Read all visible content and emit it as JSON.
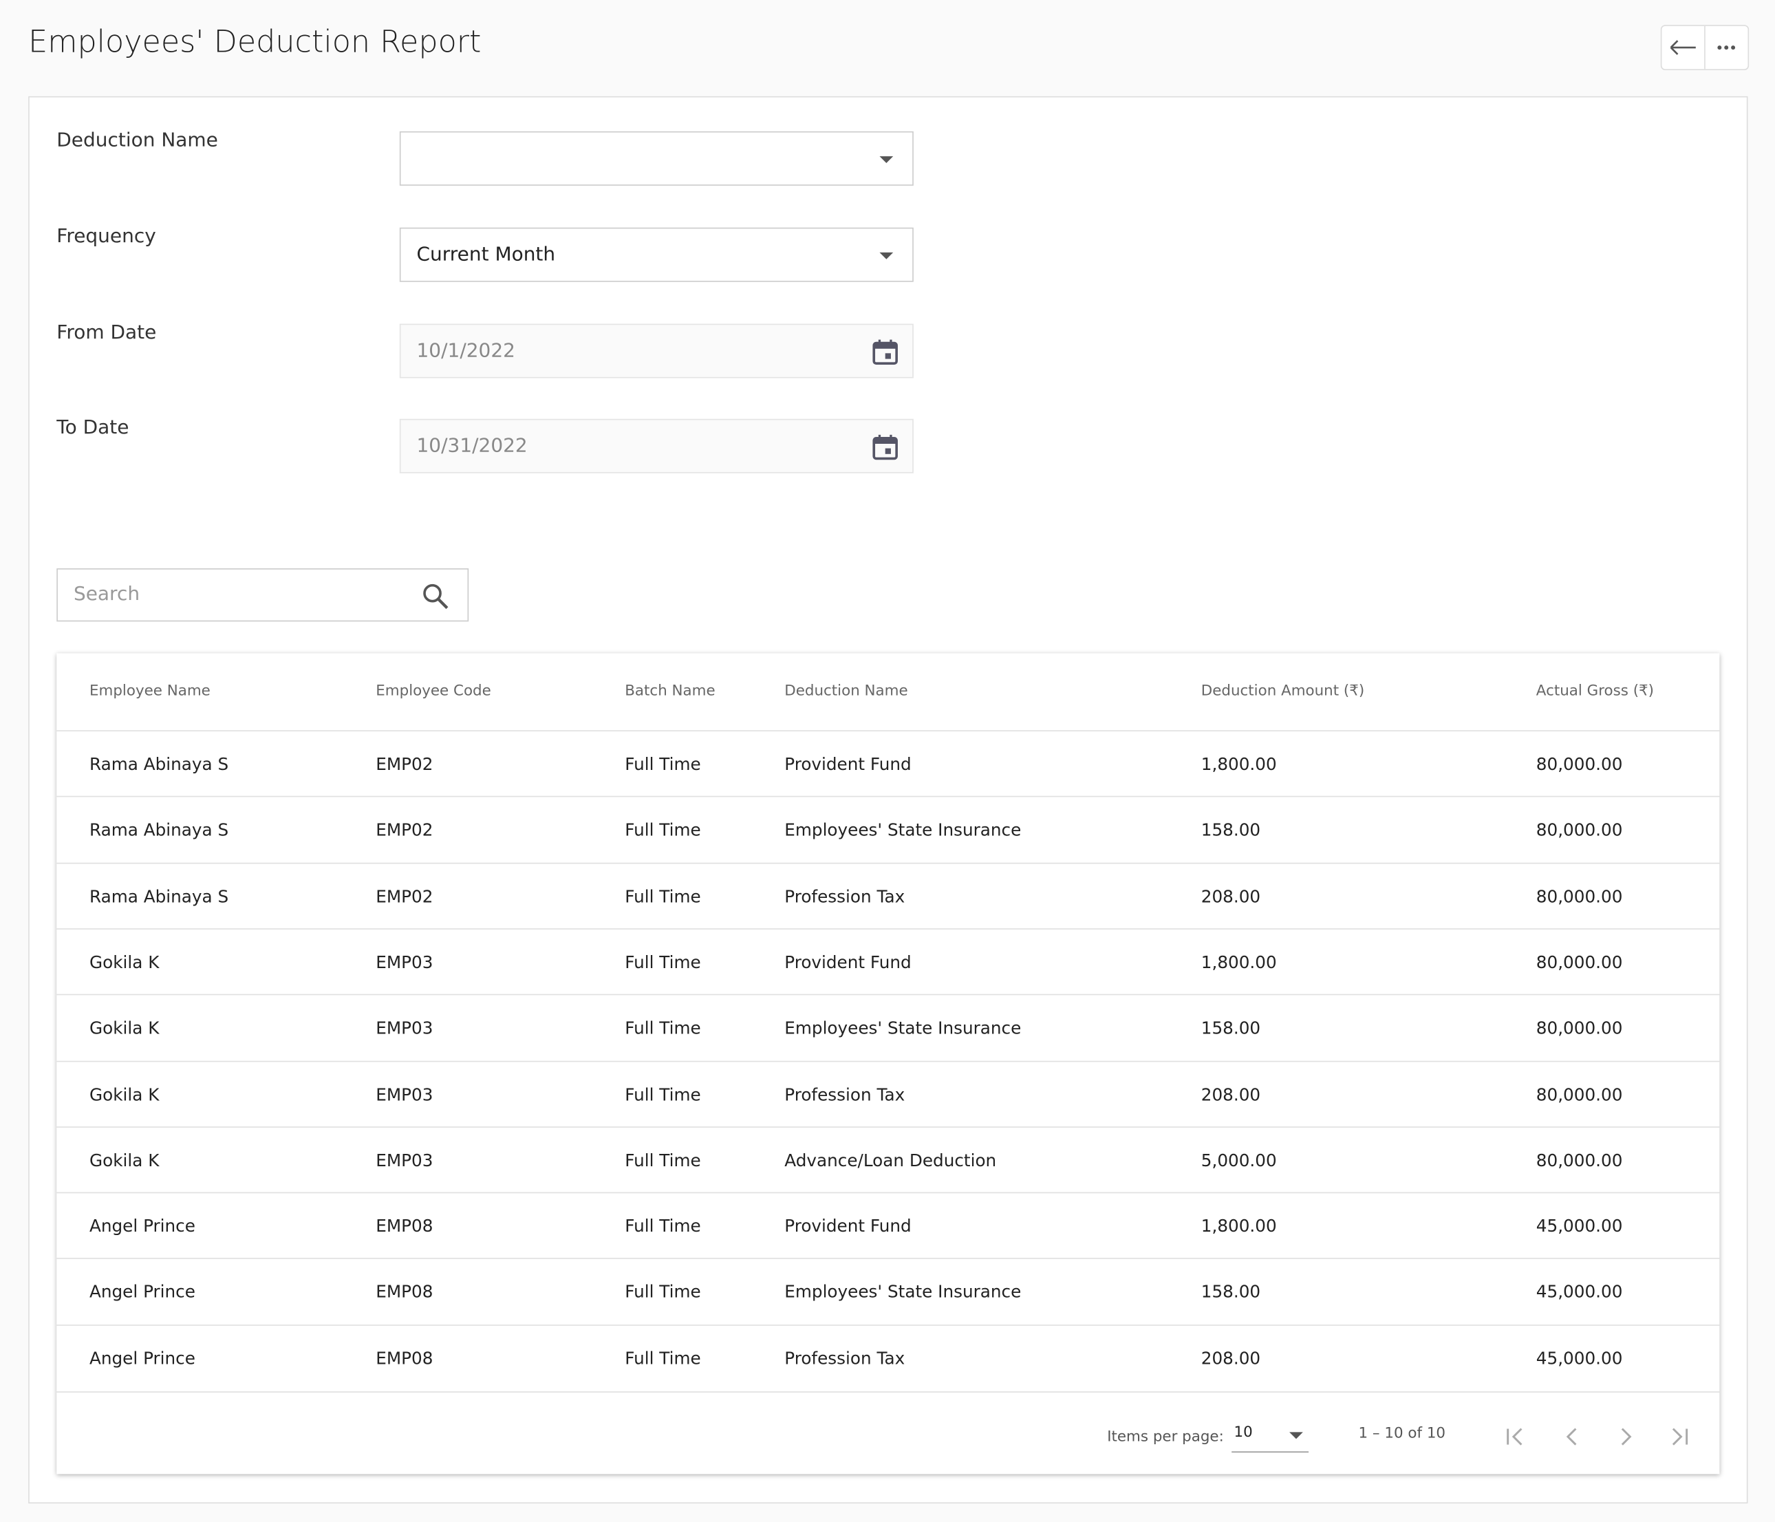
{
  "header": {
    "title": "Employees' Deduction Report"
  },
  "form": {
    "fields": [
      {
        "label": "Deduction Name",
        "value": null,
        "kind": "select"
      },
      {
        "label": "Frequency",
        "value": "Current Month",
        "kind": "select"
      },
      {
        "label": "From Date",
        "value": "10/1/2022",
        "kind": "date"
      },
      {
        "label": "To Date",
        "value": "10/31/2022",
        "kind": "date"
      }
    ]
  },
  "search": {
    "placeholder": "Search"
  },
  "table": {
    "columns": [
      "Employee Name",
      "Employee Code",
      "Batch Name",
      "Deduction Name",
      "Deduction Amount (₹)",
      "Actual Gross (₹)"
    ],
    "rows": [
      [
        "Rama Abinaya S",
        "EMP02",
        "Full Time",
        "Provident Fund",
        "1,800.00",
        "80,000.00"
      ],
      [
        "Rama Abinaya S",
        "EMP02",
        "Full Time",
        "Employees' State Insurance",
        "158.00",
        "80,000.00"
      ],
      [
        "Rama Abinaya S",
        "EMP02",
        "Full Time",
        "Profession Tax",
        "208.00",
        "80,000.00"
      ],
      [
        "Gokila K",
        "EMP03",
        "Full Time",
        "Provident Fund",
        "1,800.00",
        "80,000.00"
      ],
      [
        "Gokila K",
        "EMP03",
        "Full Time",
        "Employees' State Insurance",
        "158.00",
        "80,000.00"
      ],
      [
        "Gokila K",
        "EMP03",
        "Full Time",
        "Profession Tax",
        "208.00",
        "80,000.00"
      ],
      [
        "Gokila K",
        "EMP03",
        "Full Time",
        "Advance/Loan Deduction",
        "5,000.00",
        "80,000.00"
      ],
      [
        "Angel Prince",
        "EMP08",
        "Full Time",
        "Provident Fund",
        "1,800.00",
        "45,000.00"
      ],
      [
        "Angel Prince",
        "EMP08",
        "Full Time",
        "Employees' State Insurance",
        "158.00",
        "45,000.00"
      ],
      [
        "Angel Prince",
        "EMP08",
        "Full Time",
        "Profession Tax",
        "208.00",
        "45,000.00"
      ]
    ]
  },
  "pagination": {
    "items_per_page_label": "Items per page:",
    "page_size": "10",
    "range": "1 – 10 of 10"
  }
}
